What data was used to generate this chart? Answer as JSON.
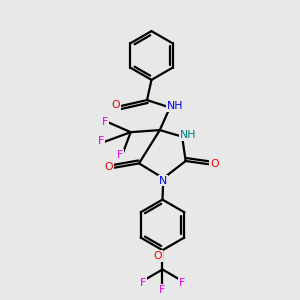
{
  "bg_color": "#e8e8e8",
  "colors": {
    "C": "#000000",
    "N_blue": "#0000ee",
    "N_teal": "#008080",
    "O": "#ee0000",
    "F": "#dd00dd",
    "bond": "#000000"
  },
  "layout": {
    "figsize": [
      3.0,
      3.0
    ],
    "dpi": 100,
    "xlim": [
      0,
      1
    ],
    "ylim": [
      0,
      1
    ]
  }
}
